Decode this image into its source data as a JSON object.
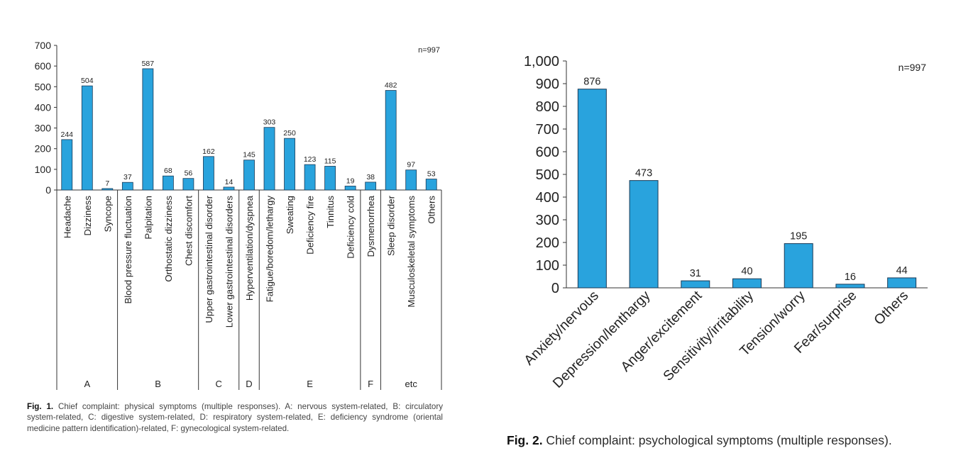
{
  "chart_data": [
    {
      "type": "bar",
      "title": "",
      "xlabel": "",
      "ylabel": "",
      "ylim": [
        0,
        700
      ],
      "yticks": [
        "0",
        "100",
        "200",
        "300",
        "400",
        "500",
        "600",
        "700"
      ],
      "annotation": "n=997",
      "categories": [
        "Headache",
        "Dizziness",
        "Syncope",
        "Blood pressure fluctuation",
        "Palpitation",
        "Orthostatic dizziness",
        "Chest discomfort",
        "Upper gastrointestinal disorder",
        "Lower gastrointestinal disorders",
        "Hyperventilation/dyspnea",
        "Fatigue/boredom/lethargy",
        "Sweating",
        "Deficiency fire",
        "Tinnitus",
        "Deficiency cold",
        "Dysmenorrhea",
        "Sleep disorder",
        "Musculoskeletal symptoms",
        "Others"
      ],
      "values": [
        244,
        504,
        7,
        37,
        587,
        68,
        56,
        162,
        14,
        145,
        303,
        250,
        123,
        115,
        19,
        38,
        482,
        97,
        53
      ],
      "groups": [
        {
          "label": "A",
          "count": 3
        },
        {
          "label": "B",
          "count": 4
        },
        {
          "label": "C",
          "count": 2
        },
        {
          "label": "D",
          "count": 1
        },
        {
          "label": "E",
          "count": 5
        },
        {
          "label": "F",
          "count": 1
        },
        {
          "label": "etc",
          "count": 3
        }
      ],
      "bar_color": "#29a3dd",
      "bar_edge_color": "#1a3a57"
    },
    {
      "type": "bar",
      "title": "",
      "xlabel": "",
      "ylabel": "",
      "ylim": [
        0,
        1000
      ],
      "yticks": [
        "0",
        "100",
        "200",
        "300",
        "400",
        "500",
        "600",
        "700",
        "800",
        "900",
        "1,000"
      ],
      "annotation": "n=997",
      "categories": [
        "Anxiety/nervous",
        "Depression/lenthargy",
        "Anger/excitement",
        "Sensitivity/irritability",
        "Tension/worry",
        "Fear/surprise",
        "Others"
      ],
      "values": [
        876,
        473,
        31,
        40,
        195,
        16,
        44
      ],
      "bar_color": "#29a3dd",
      "bar_edge_color": "#1a3a57"
    }
  ],
  "captions": {
    "fig1": {
      "label": "Fig. 1.",
      "text": " Chief complaint: physical symptoms (multiple responses). A: nervous system-related, B: circulatory system-related, C: digestive system-related, D: respiratory system-related, E: deficiency syndrome (oriental medicine pattern identification)-related, F: gynecological system-related."
    },
    "fig2": {
      "label": "Fig. 2.",
      "text": " Chief complaint: psychological symptoms (multiple responses)."
    }
  }
}
